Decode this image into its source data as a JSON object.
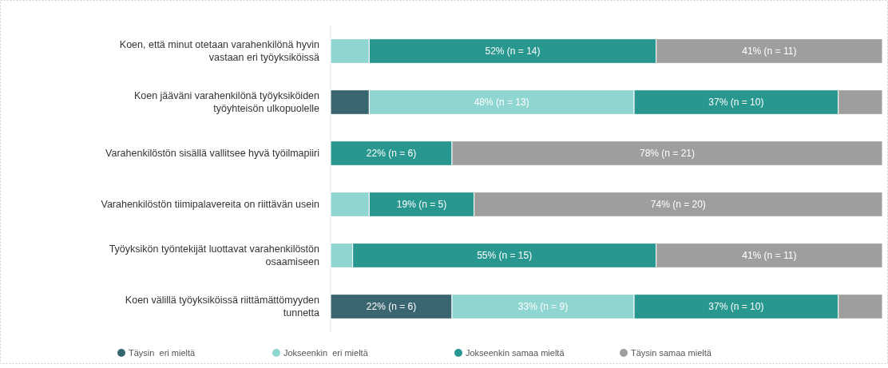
{
  "chart_data": {
    "type": "bar",
    "orientation": "horizontal",
    "stacked": true,
    "xlim": [
      0,
      100
    ],
    "tick_labels": "y",
    "legend": "bottom",
    "categories": [
      "Koen, että minut otetaan varahenkilönä hyvin vastaan eri työyksiköissä",
      "Koen jääväni varahenkilönä työyksiköiden työyhteisön ulkopuolelle",
      "Varahenkilöstön sisällä vallitsee hyvä työilmapiiri",
      "Varahenkilöstön tiimipalavereita on riittävän usein",
      "Työyksikön työntekijät luottavat varahenkilöstön osaamiseen",
      "Koen välillä työyksiköissä riittämättömyyden tunnetta"
    ],
    "series": [
      {
        "name": "Täysin  eri mieltä",
        "color": "#3a6672",
        "values": [
          0,
          7,
          0,
          0,
          0,
          22
        ],
        "value_labels": [
          null,
          null,
          null,
          null,
          null,
          "22% (n = 6)"
        ]
      },
      {
        "name": "Jokseenkin  eri mieltä",
        "color": "#8fd6d0",
        "values": [
          7,
          48,
          0,
          7,
          4,
          33
        ],
        "value_labels": [
          null,
          "48% (n = 13)",
          null,
          null,
          null,
          "33% (n = 9)"
        ]
      },
      {
        "name": "Jokseenkin samaa mieltä",
        "color": "#27978f",
        "values": [
          52,
          37,
          22,
          19,
          55,
          37
        ],
        "value_labels": [
          "52% (n = 14)",
          "37% (n = 10)",
          "22% (n = 6)",
          "19% (n = 5)",
          "55% (n = 15)",
          "37% (n = 10)"
        ]
      },
      {
        "name": "Täysin samaa mieltä",
        "color": "#a09e9c",
        "values": [
          41,
          8,
          78,
          74,
          41,
          8
        ],
        "value_labels": [
          "41% (n = 11)",
          null,
          "78% (n = 21)",
          "74% (n = 20)",
          "41% (n = 11)",
          null
        ]
      }
    ]
  }
}
